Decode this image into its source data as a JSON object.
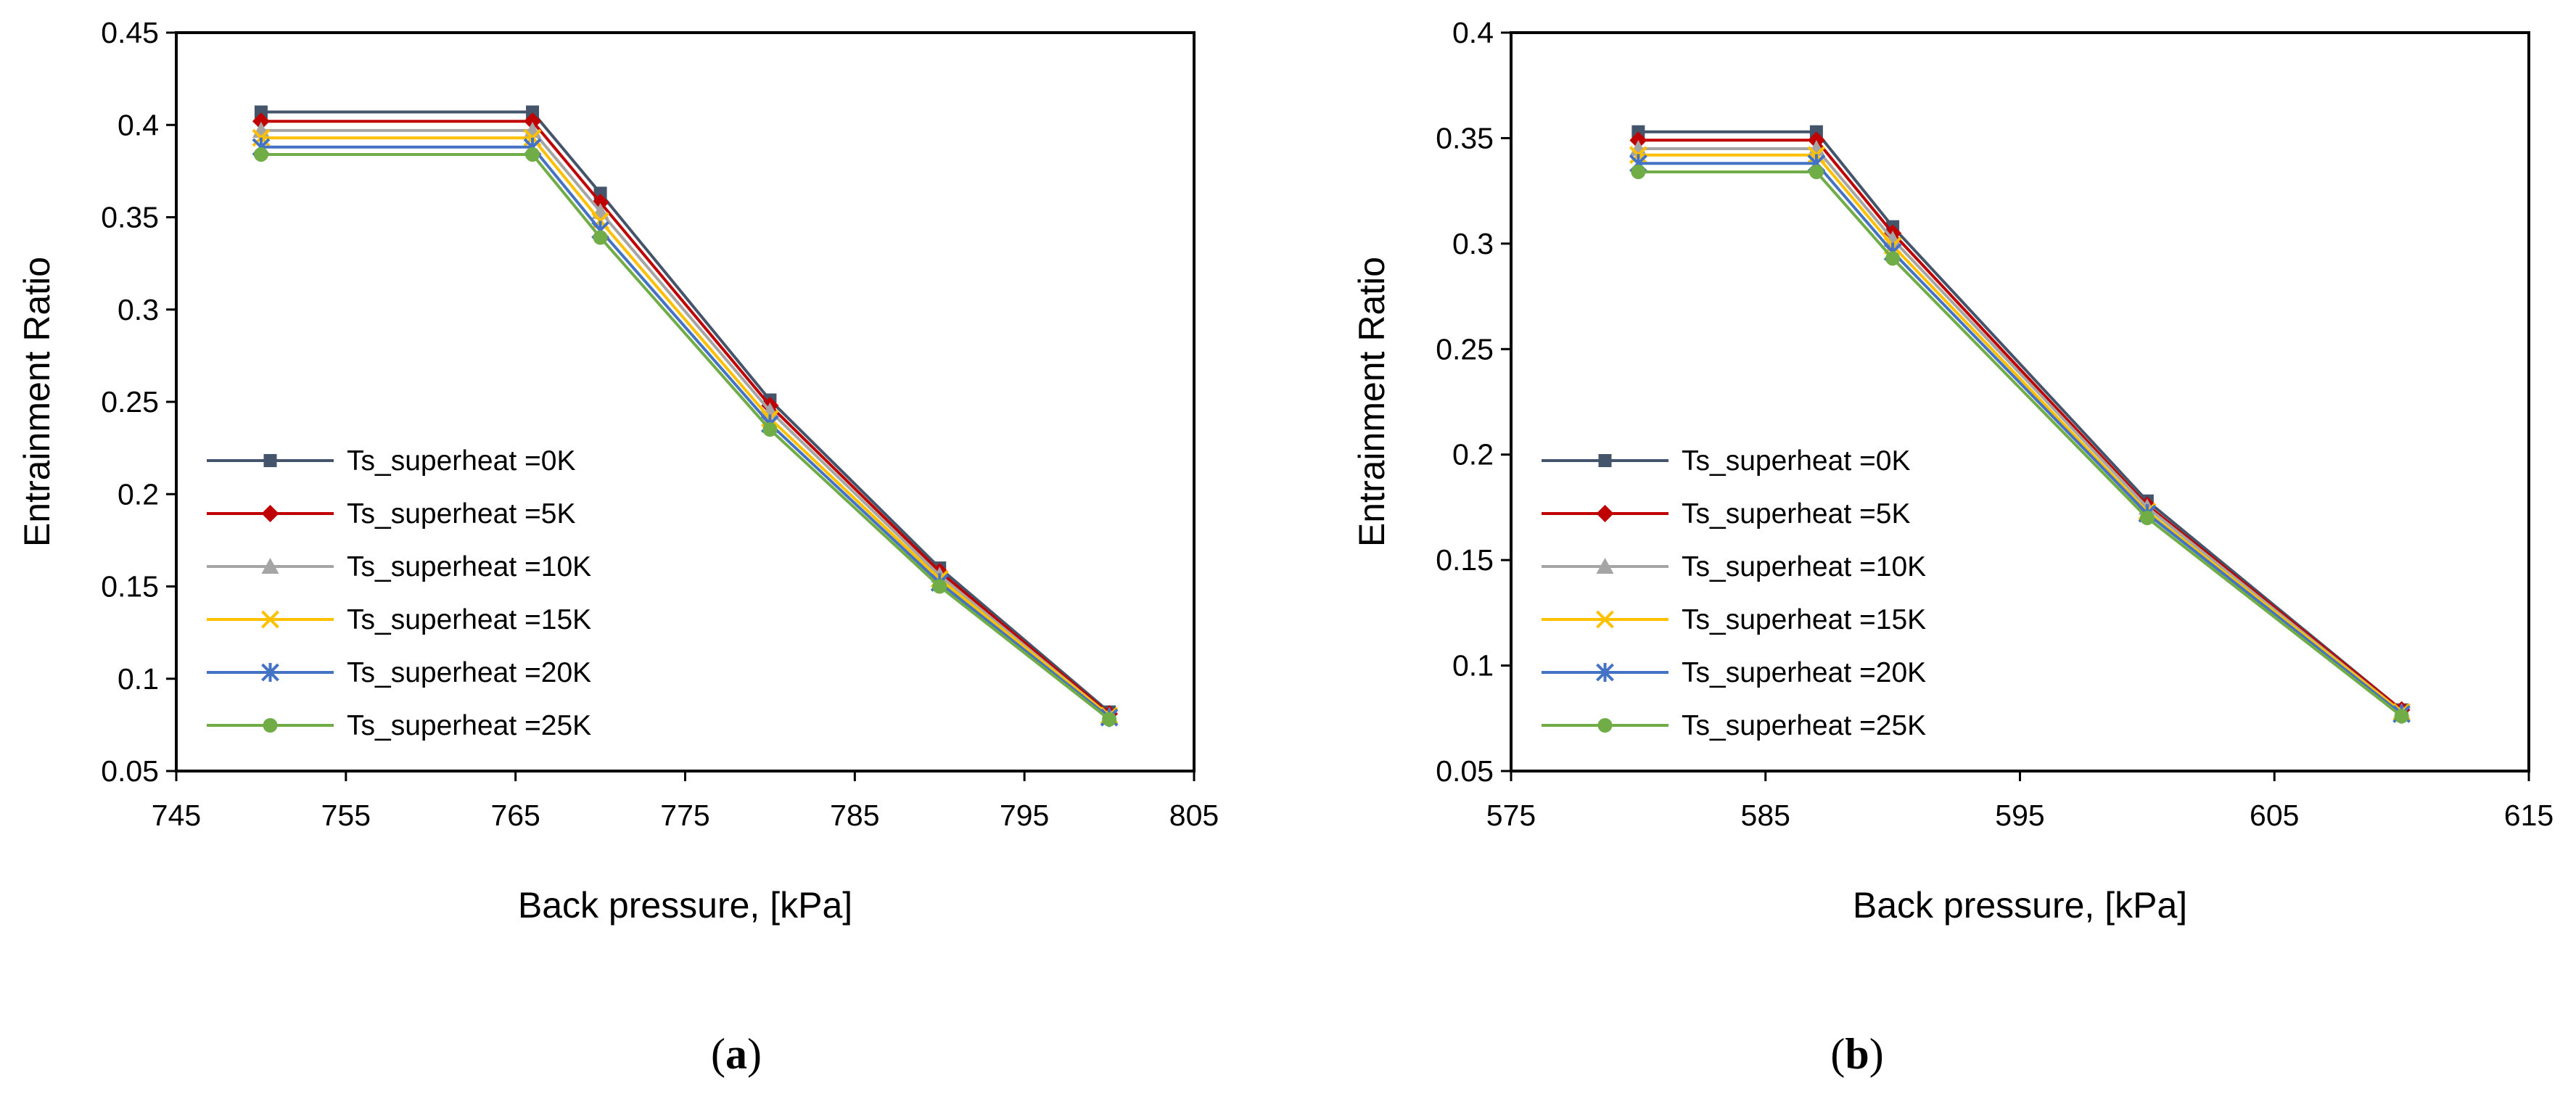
{
  "chart_data": [
    {
      "type": "line",
      "panel_label": "a",
      "xlabel": "Back pressure, [kPa]",
      "ylabel": "Entrainment Ratio",
      "xlim": [
        745,
        805
      ],
      "ylim": [
        0.05,
        0.45
      ],
      "xticks": [
        745,
        755,
        765,
        775,
        785,
        795,
        805
      ],
      "yticks": [
        0.05,
        0.1,
        0.15,
        0.2,
        0.25,
        0.3,
        0.35,
        0.4,
        0.45
      ],
      "ytick_labels": [
        "0.05",
        "0.1",
        "0.15",
        "0.2",
        "0.25",
        "0.3",
        "0.35",
        "0.4",
        "0.45"
      ],
      "grid": false,
      "legend_position": "lower-left",
      "x": [
        750,
        766,
        770,
        780,
        790,
        800
      ],
      "series": [
        {
          "name": "Ts_superheat =0K",
          "color": "#44546A",
          "marker": "square",
          "values": [
            0.407,
            0.407,
            0.363,
            0.251,
            0.16,
            0.082
          ]
        },
        {
          "name": "Ts_superheat =5K",
          "color": "#C00000",
          "marker": "diamond",
          "values": [
            0.402,
            0.402,
            0.358,
            0.248,
            0.158,
            0.081
          ]
        },
        {
          "name": "Ts_superheat =10K",
          "color": "#A5A5A5",
          "marker": "triangle",
          "values": [
            0.397,
            0.397,
            0.353,
            0.245,
            0.156,
            0.08
          ]
        },
        {
          "name": "Ts_superheat =15K",
          "color": "#FFC000",
          "marker": "x",
          "values": [
            0.393,
            0.393,
            0.348,
            0.241,
            0.154,
            0.08
          ]
        },
        {
          "name": "Ts_superheat =20K",
          "color": "#4472C4",
          "marker": "star",
          "values": [
            0.388,
            0.388,
            0.343,
            0.238,
            0.152,
            0.079
          ]
        },
        {
          "name": "Ts_superheat =25K",
          "color": "#70AD47",
          "marker": "circle",
          "values": [
            0.384,
            0.384,
            0.339,
            0.235,
            0.15,
            0.078
          ]
        }
      ]
    },
    {
      "type": "line",
      "panel_label": "b",
      "xlabel": "Back pressure, [kPa]",
      "ylabel": "Entrainment Ratio",
      "xlim": [
        575,
        615
      ],
      "ylim": [
        0.05,
        0.4
      ],
      "xticks": [
        575,
        585,
        595,
        605,
        615
      ],
      "yticks": [
        0.05,
        0.1,
        0.15,
        0.2,
        0.25,
        0.3,
        0.35,
        0.4
      ],
      "ytick_labels": [
        "0.05",
        "0.1",
        "0.15",
        "0.2",
        "0.25",
        "0.3",
        "0.35",
        "0.4"
      ],
      "grid": false,
      "legend_position": "lower-left",
      "x": [
        580,
        587,
        590,
        600,
        610
      ],
      "series": [
        {
          "name": "Ts_superheat =0K",
          "color": "#44546A",
          "marker": "square",
          "values": [
            0.353,
            0.353,
            0.308,
            0.178,
            0.079
          ]
        },
        {
          "name": "Ts_superheat =5K",
          "color": "#C00000",
          "marker": "diamond",
          "values": [
            0.349,
            0.349,
            0.305,
            0.176,
            0.079
          ]
        },
        {
          "name": "Ts_superheat =10K",
          "color": "#A5A5A5",
          "marker": "triangle",
          "values": [
            0.345,
            0.345,
            0.302,
            0.175,
            0.078
          ]
        },
        {
          "name": "Ts_superheat =15K",
          "color": "#FFC000",
          "marker": "x",
          "values": [
            0.342,
            0.342,
            0.299,
            0.173,
            0.078
          ]
        },
        {
          "name": "Ts_superheat =20K",
          "color": "#4472C4",
          "marker": "star",
          "values": [
            0.338,
            0.338,
            0.296,
            0.172,
            0.077
          ]
        },
        {
          "name": "Ts_superheat =25K",
          "color": "#70AD47",
          "marker": "circle",
          "values": [
            0.334,
            0.334,
            0.293,
            0.17,
            0.076
          ]
        }
      ]
    }
  ]
}
